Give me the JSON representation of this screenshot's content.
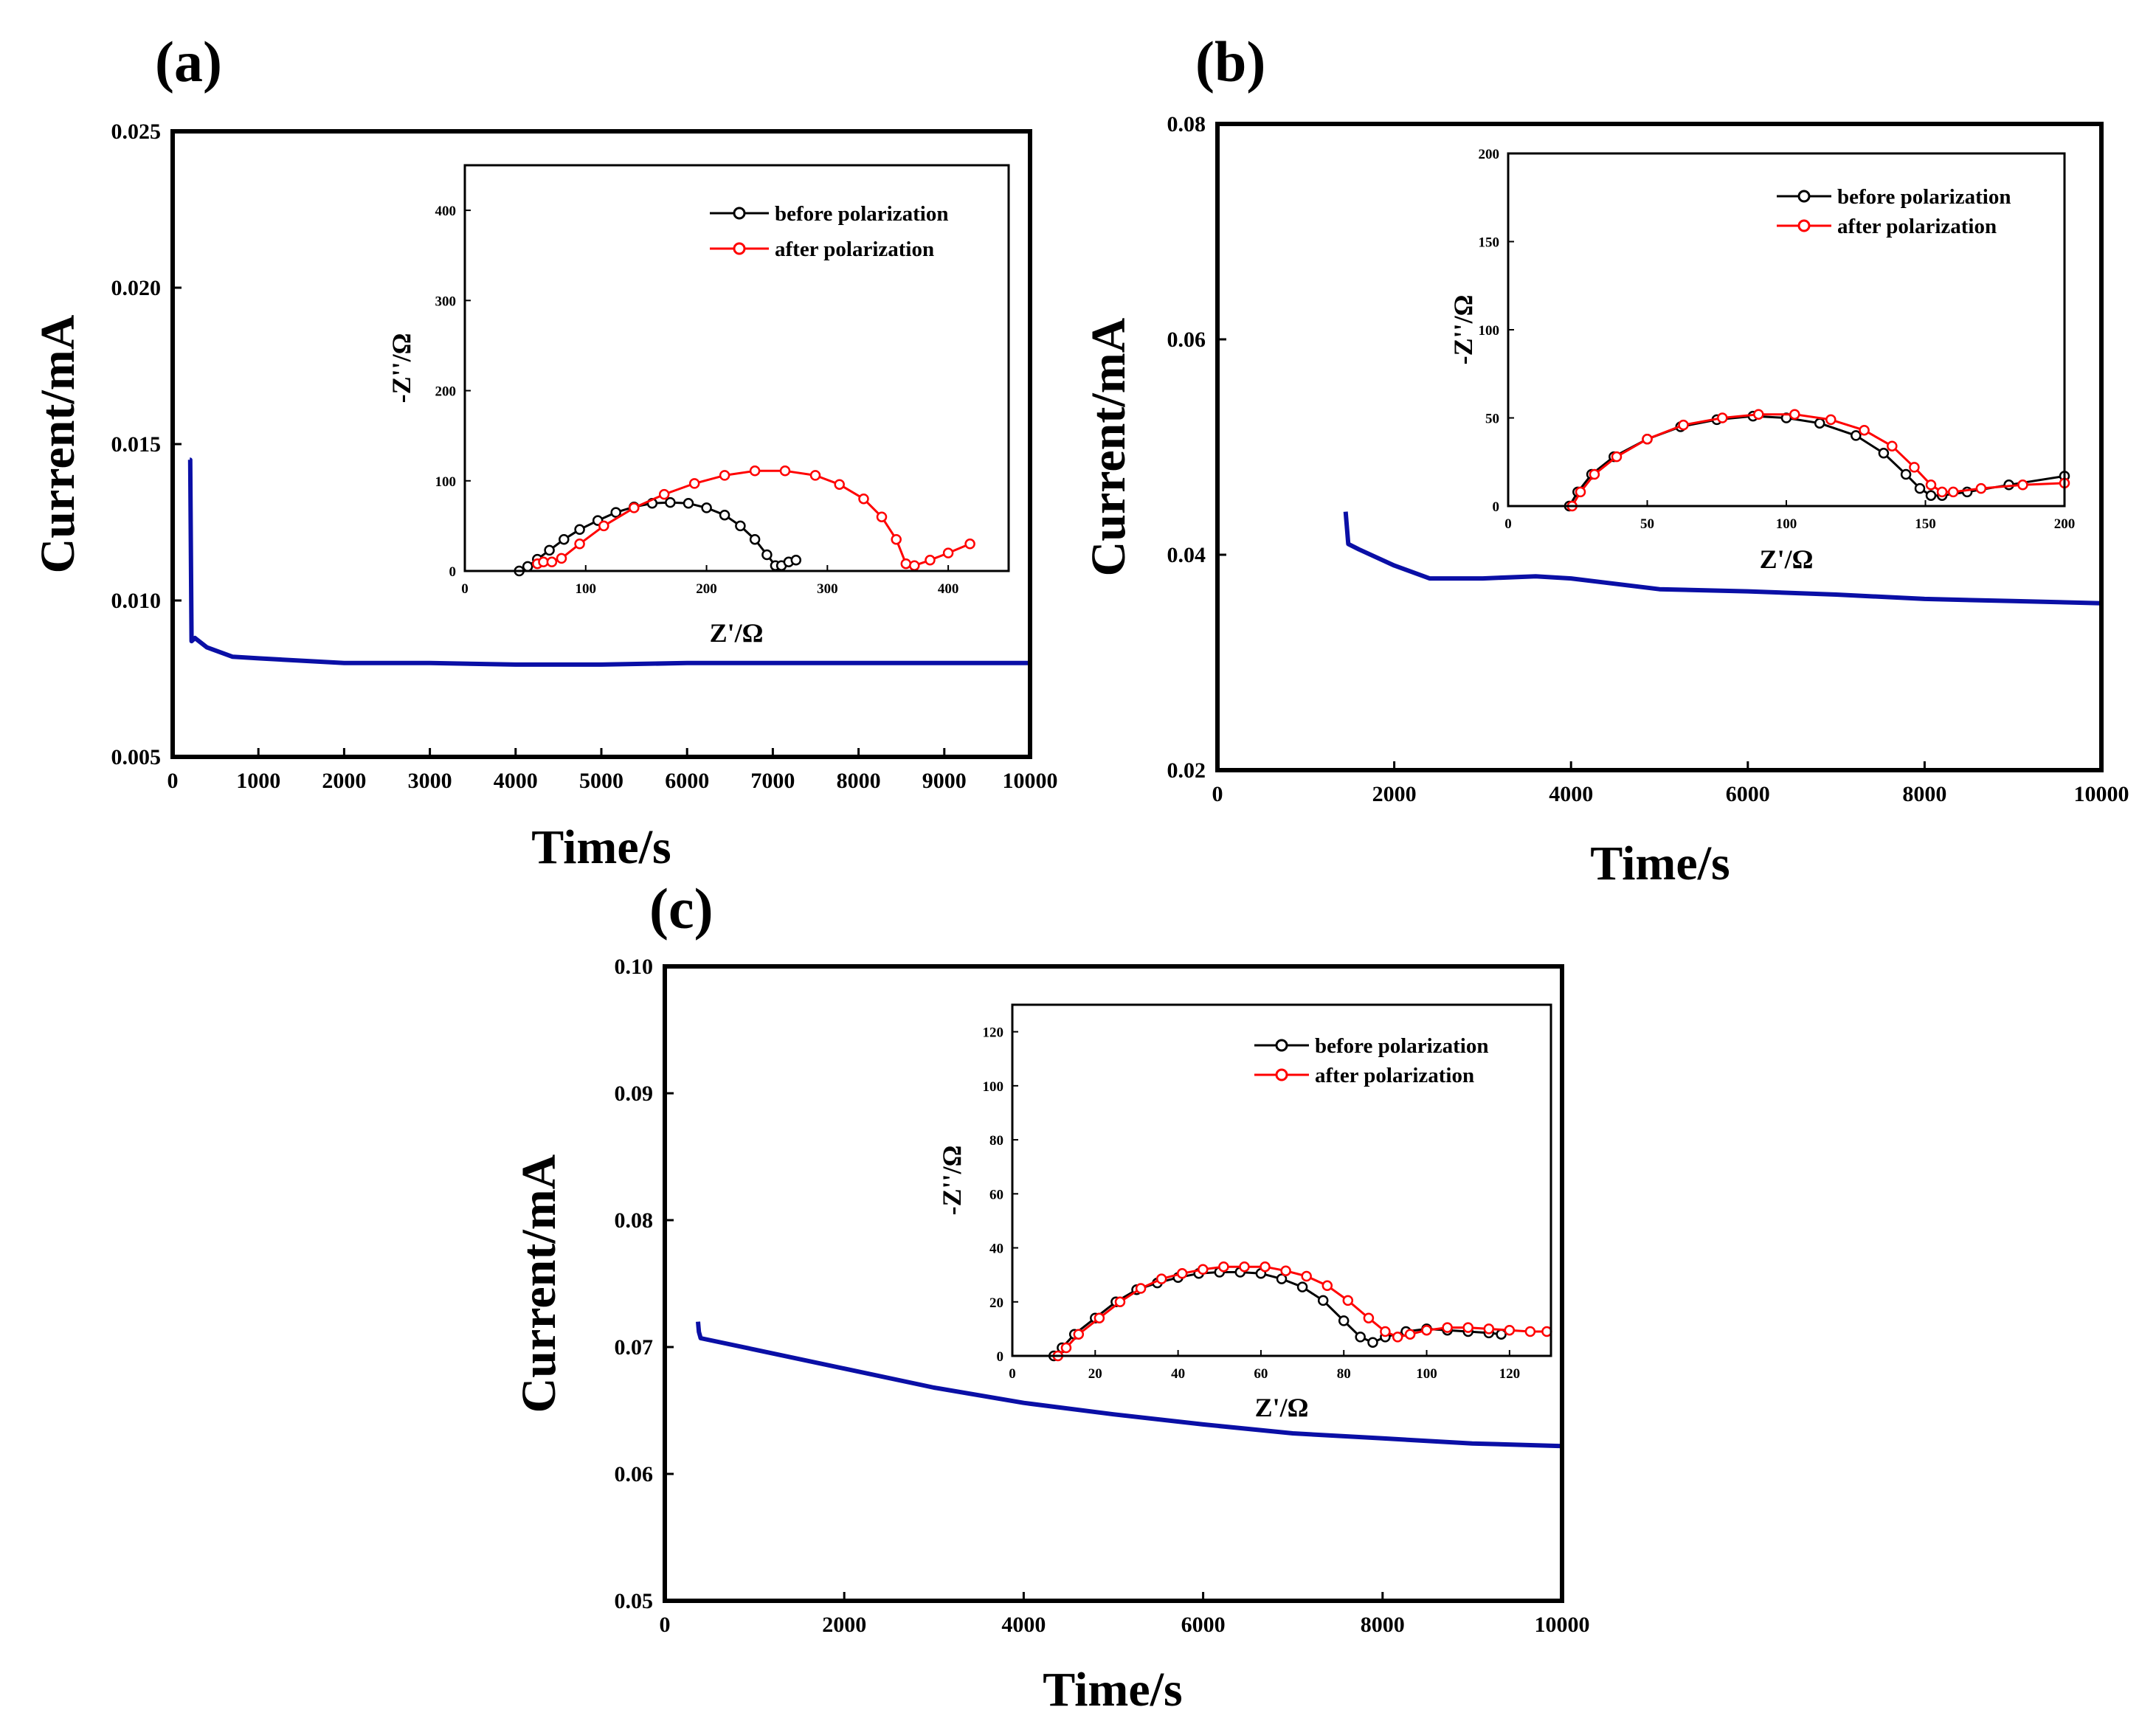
{
  "colors": {
    "main_line": "#0a0fa6",
    "before": "#000000",
    "after": "#ff0000",
    "axis": "#000000"
  },
  "chart_data": [
    {
      "id": "a",
      "type": "line",
      "panel_label": "(a)",
      "xlabel": "Time/s",
      "ylabel": "Current/mA",
      "xlim": [
        0,
        10000
      ],
      "ylim": [
        0.005,
        0.025
      ],
      "xticks": [
        0,
        1000,
        2000,
        3000,
        4000,
        5000,
        6000,
        7000,
        8000,
        9000,
        10000
      ],
      "xtick_labels": [
        "0",
        "1000",
        "2000",
        "3000",
        "4000",
        "5000",
        "6000",
        "7000",
        "8000",
        "9000",
        "10000"
      ],
      "yticks": [
        0.005,
        0.01,
        0.015,
        0.02,
        0.025
      ],
      "ytick_labels": [
        "0.005",
        "0.010",
        "0.015",
        "0.020",
        "0.025"
      ],
      "series": [
        {
          "name": "current",
          "x": [
            200,
            205,
            220,
            260,
            400,
            700,
            1000,
            2000,
            3000,
            4000,
            5000,
            6000,
            7000,
            8000,
            9000,
            10000
          ],
          "y": [
            0.0145,
            0.0145,
            0.0087,
            0.0088,
            0.0085,
            0.0082,
            0.00815,
            0.008,
            0.008,
            0.00795,
            0.00795,
            0.008,
            0.008,
            0.008,
            0.008,
            0.008
          ]
        }
      ],
      "inset": {
        "xlabel": "Z'/Ω",
        "ylabel": "-Z''/Ω",
        "xlim": [
          0,
          450
        ],
        "ylim": [
          0,
          450
        ],
        "xticks": [
          0,
          100,
          200,
          300,
          400
        ],
        "xtick_labels": [
          "0",
          "100",
          "200",
          "300",
          "400"
        ],
        "yticks": [
          0,
          100,
          200,
          300,
          400
        ],
        "ytick_labels": [
          "0",
          "100",
          "200",
          "300",
          "400"
        ],
        "legend_position": "top-right",
        "series": [
          {
            "name": "before polarization",
            "x": [
              45,
              52,
              60,
              70,
              82,
              95,
              110,
              125,
              140,
              155,
              170,
              185,
              200,
              215,
              228,
              240,
              250,
              257,
              262,
              268,
              274
            ],
            "y": [
              0,
              5,
              13,
              23,
              35,
              46,
              56,
              65,
              71,
              75,
              76,
              75,
              70,
              62,
              50,
              35,
              18,
              6,
              6,
              10,
              12
            ]
          },
          {
            "name": "after polarization",
            "x": [
              60,
              65,
              72,
              80,
              95,
              115,
              140,
              165,
              190,
              215,
              240,
              265,
              290,
              310,
              330,
              345,
              357,
              365,
              372,
              385,
              400,
              418
            ],
            "y": [
              8,
              10,
              10,
              14,
              30,
              50,
              70,
              85,
              97,
              106,
              111,
              111,
              106,
              96,
              80,
              60,
              35,
              8,
              6,
              12,
              20,
              30
            ]
          }
        ]
      }
    },
    {
      "id": "b",
      "type": "line",
      "panel_label": "(b)",
      "xlabel": "Time/s",
      "ylabel": "Current/mA",
      "xlim": [
        0,
        10000
      ],
      "ylim": [
        0.02,
        0.08
      ],
      "xticks": [
        0,
        2000,
        4000,
        6000,
        8000,
        10000
      ],
      "xtick_labels": [
        "0",
        "2000",
        "4000",
        "6000",
        "8000",
        "10000"
      ],
      "yticks": [
        0.02,
        0.04,
        0.06,
        0.08
      ],
      "ytick_labels": [
        "0.02",
        "0.04",
        "0.06",
        "0.08"
      ],
      "series": [
        {
          "name": "current",
          "x": [
            1450,
            1460,
            1480,
            1600,
            2000,
            2400,
            3000,
            3600,
            4000,
            5000,
            6000,
            7000,
            8000,
            9000,
            10000
          ],
          "y": [
            0.044,
            0.043,
            0.041,
            0.0405,
            0.039,
            0.0378,
            0.0378,
            0.038,
            0.0378,
            0.0368,
            0.0366,
            0.0363,
            0.0359,
            0.0357,
            0.0355
          ]
        }
      ],
      "inset": {
        "xlabel": "Z'/Ω",
        "ylabel": "-Z''/Ω",
        "xlim": [
          0,
          200
        ],
        "ylim": [
          0,
          200
        ],
        "xticks": [
          0,
          50,
          100,
          150,
          200
        ],
        "xtick_labels": [
          "0",
          "50",
          "100",
          "150",
          "200"
        ],
        "yticks": [
          0,
          50,
          100,
          150,
          200
        ],
        "ytick_labels": [
          "0",
          "50",
          "100",
          "150",
          "200"
        ],
        "legend_position": "top-right",
        "series": [
          {
            "name": "before polarization",
            "x": [
              22,
              25,
              30,
              38,
              50,
              62,
              75,
              88,
              100,
              112,
              125,
              135,
              143,
              148,
              152,
              156,
              165,
              180,
              200
            ],
            "y": [
              0,
              8,
              18,
              28,
              38,
              45,
              49,
              51,
              50,
              47,
              40,
              30,
              18,
              10,
              6,
              6,
              8,
              12,
              17
            ]
          },
          {
            "name": "after polarization",
            "x": [
              23,
              26,
              31,
              39,
              50,
              63,
              77,
              90,
              103,
              116,
              128,
              138,
              146,
              152,
              156,
              160,
              170,
              185,
              200
            ],
            "y": [
              0,
              8,
              18,
              28,
              38,
              46,
              50,
              52,
              52,
              49,
              43,
              34,
              22,
              12,
              8,
              8,
              10,
              12,
              13
            ]
          }
        ]
      }
    },
    {
      "id": "c",
      "type": "line",
      "panel_label": "(c)",
      "xlabel": "Time/s",
      "ylabel": "Current/mA",
      "xlim": [
        0,
        10000
      ],
      "ylim": [
        0.05,
        0.1
      ],
      "xticks": [
        0,
        2000,
        4000,
        6000,
        8000,
        10000
      ],
      "xtick_labels": [
        "0",
        "2000",
        "4000",
        "6000",
        "8000",
        "10000"
      ],
      "yticks": [
        0.05,
        0.06,
        0.07,
        0.08,
        0.09,
        0.1
      ],
      "ytick_labels": [
        "0.05",
        "0.06",
        "0.07",
        "0.08",
        "0.09",
        "0.10"
      ],
      "series": [
        {
          "name": "current",
          "x": [
            370,
            380,
            400,
            1000,
            2000,
            3000,
            4000,
            5000,
            6000,
            7000,
            8000,
            9000,
            10000
          ],
          "y": [
            0.072,
            0.0712,
            0.0707,
            0.0698,
            0.0683,
            0.0668,
            0.0656,
            0.0647,
            0.0639,
            0.0632,
            0.0628,
            0.0624,
            0.0622
          ]
        }
      ],
      "inset": {
        "xlabel": "Z'/Ω",
        "ylabel": "-Z''/Ω",
        "xlim": [
          0,
          130
        ],
        "ylim": [
          0,
          130
        ],
        "xticks": [
          0,
          20,
          40,
          60,
          80,
          100,
          120
        ],
        "xtick_labels": [
          "0",
          "20",
          "40",
          "60",
          "80",
          "100",
          "120"
        ],
        "yticks": [
          0,
          20,
          40,
          60,
          80,
          100,
          120
        ],
        "ytick_labels": [
          "0",
          "20",
          "40",
          "60",
          "80",
          "100",
          "120"
        ],
        "legend_position": "top-right",
        "series": [
          {
            "name": "before polarization",
            "x": [
              10,
              12,
              15,
              20,
              25,
              30,
              35,
              40,
              45,
              50,
              55,
              60,
              65,
              70,
              75,
              80,
              84,
              87,
              90,
              95,
              100,
              105,
              110,
              115,
              118
            ],
            "y": [
              0,
              3,
              8,
              14,
              20,
              24.5,
              27,
              29,
              30.5,
              31,
              31,
              30.5,
              28.5,
              25.5,
              20.5,
              13,
              7,
              5,
              7,
              9,
              10,
              9.5,
              9,
              8.5,
              8
            ]
          },
          {
            "name": "after polarization",
            "x": [
              11,
              13,
              16,
              21,
              26,
              31,
              36,
              41,
              46,
              51,
              56,
              61,
              66,
              71,
              76,
              81,
              86,
              90,
              93,
              96,
              100,
              105,
              110,
              115,
              120,
              125,
              129
            ],
            "y": [
              0,
              3,
              8,
              14,
              20,
              25,
              28.5,
              30.5,
              32,
              33,
              33,
              33,
              31.5,
              29.5,
              26,
              20.5,
              14,
              9,
              7,
              8,
              9.5,
              10.5,
              10.5,
              10,
              9.5,
              9,
              9
            ]
          }
        ]
      }
    }
  ]
}
